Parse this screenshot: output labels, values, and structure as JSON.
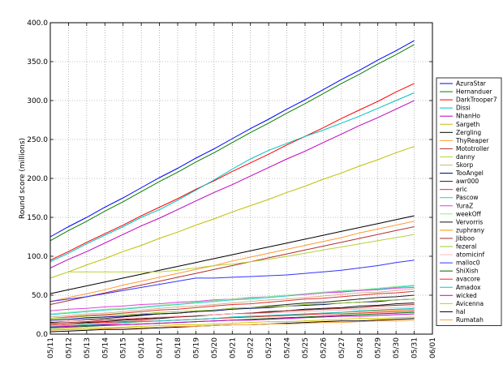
{
  "chart_data": {
    "type": "line",
    "ylabel": "Round score (millions)",
    "categories": [
      "05/11",
      "05/12",
      "05/13",
      "05/14",
      "05/15",
      "05/16",
      "05/17",
      "05/18",
      "05/19",
      "05/20",
      "05/21",
      "05/22",
      "05/23",
      "05/24",
      "05/25",
      "05/26",
      "05/27",
      "05/28",
      "05/29",
      "05/30",
      "05/31",
      "06/01"
    ],
    "ylim": [
      0,
      400
    ],
    "yticks": [
      {
        "value": 0,
        "label": "0.0"
      },
      {
        "value": 50,
        "label": "50.0"
      },
      {
        "value": 100,
        "label": "100.0"
      },
      {
        "value": 150,
        "label": "150.0"
      },
      {
        "value": 200,
        "label": "200.0"
      },
      {
        "value": 250,
        "label": "250.0"
      },
      {
        "value": 300,
        "label": "300.0"
      },
      {
        "value": 350,
        "label": "350.0"
      },
      {
        "value": 400,
        "label": "400.0"
      }
    ],
    "grid": true,
    "legend": "outside right",
    "series": [
      {
        "name": "AzuraStar",
        "color": "#0000ff",
        "values": [
          125,
          138,
          150,
          163,
          175,
          188,
          201,
          213,
          226,
          238,
          251,
          264,
          276,
          289,
          301,
          314,
          327,
          339,
          352,
          364,
          377,
          null
        ]
      },
      {
        "name": "Hernanduer",
        "color": "#008000",
        "values": [
          120,
          133,
          145,
          158,
          170,
          183,
          196,
          208,
          221,
          233,
          246,
          259,
          271,
          284,
          296,
          309,
          322,
          334,
          347,
          359,
          372,
          null
        ]
      },
      {
        "name": "DarkTrooper7",
        "color": "#ff0000",
        "values": [
          95,
          106,
          118,
          129,
          140,
          152,
          163,
          174,
          186,
          197,
          209,
          220,
          231,
          243,
          254,
          265,
          277,
          288,
          299,
          311,
          322,
          null
        ]
      },
      {
        "name": "Dissi",
        "color": "#00bfbf",
        "values": [
          93,
          104,
          116,
          127,
          138,
          150,
          160,
          172,
          185,
          198,
          212,
          225,
          236,
          245,
          254,
          262,
          271,
          280,
          290,
          300,
          310,
          null
        ]
      },
      {
        "name": "NhanHo",
        "color": "#bf00bf",
        "values": [
          85,
          96,
          106,
          117,
          128,
          139,
          149,
          160,
          171,
          182,
          192,
          203,
          214,
          225,
          235,
          246,
          257,
          268,
          278,
          289,
          300,
          null
        ]
      },
      {
        "name": "Sargeth",
        "color": "#bfbf00",
        "values": [
          72,
          80,
          89,
          97,
          106,
          114,
          123,
          131,
          140,
          148,
          157,
          165,
          173,
          182,
          190,
          199,
          207,
          216,
          224,
          233,
          241,
          null
        ]
      },
      {
        "name": "Zergling",
        "color": "#000000",
        "values": [
          52,
          57,
          62,
          67,
          72,
          77,
          82,
          87,
          92,
          97,
          102,
          107,
          112,
          117,
          122,
          127,
          132,
          137,
          142,
          147,
          152,
          null
        ]
      },
      {
        "name": "ThyReaper",
        "color": "#ff9933",
        "values": [
          42,
          47,
          52,
          57,
          63,
          68,
          73,
          78,
          83,
          88,
          94,
          99,
          104,
          109,
          114,
          119,
          124,
          130,
          135,
          140,
          145,
          null
        ]
      },
      {
        "name": "Mototroller",
        "color": "#b03030",
        "values": [
          38,
          43,
          48,
          53,
          58,
          63,
          68,
          73,
          78,
          83,
          88,
          93,
          98,
          103,
          108,
          113,
          118,
          123,
          128,
          133,
          138,
          null
        ]
      },
      {
        "name": "danny",
        "color": "#b5d335",
        "values": [
          72,
          80,
          80,
          80,
          80,
          80,
          80,
          82,
          85,
          88,
          90,
          93,
          96,
          100,
          104,
          108,
          112,
          116,
          120,
          124,
          128,
          null
        ]
      },
      {
        "name": "Skorp",
        "color": "#d2b48c",
        "values": [
          22,
          24,
          26,
          27,
          29,
          31,
          33,
          35,
          36,
          38,
          40,
          42,
          44,
          45,
          47,
          49,
          51,
          53,
          54,
          56,
          58,
          null
        ]
      },
      {
        "name": "TooAngel",
        "color": "#000080",
        "values": [
          18,
          19,
          21,
          22,
          23,
          25,
          26,
          27,
          29,
          30,
          32,
          33,
          34,
          36,
          37,
          38,
          40,
          41,
          42,
          44,
          45,
          null
        ]
      },
      {
        "name": "awr000",
        "color": "#202020",
        "values": [
          15,
          17,
          19,
          20,
          22,
          24,
          26,
          27,
          29,
          31,
          33,
          34,
          36,
          38,
          40,
          41,
          43,
          45,
          47,
          48,
          50,
          null
        ]
      },
      {
        "name": "eric",
        "color": "#e03030",
        "values": [
          20,
          22,
          24,
          25,
          27,
          29,
          31,
          32,
          34,
          36,
          38,
          39,
          41,
          43,
          45,
          46,
          48,
          50,
          52,
          53,
          55,
          null
        ]
      },
      {
        "name": "Pascow",
        "color": "#20d0d0",
        "values": [
          25,
          27,
          29,
          31,
          32,
          34,
          36,
          38,
          40,
          42,
          44,
          45,
          47,
          49,
          51,
          53,
          55,
          56,
          58,
          60,
          62,
          null
        ]
      },
      {
        "name": "YuraZ",
        "color": "#e040e0",
        "values": [
          30,
          32,
          33,
          35,
          36,
          38,
          39,
          41,
          42,
          44,
          45,
          47,
          48,
          50,
          51,
          53,
          54,
          56,
          57,
          59,
          60,
          null
        ]
      },
      {
        "name": "weekOff",
        "color": "#90ee90",
        "values": [
          26,
          28,
          30,
          32,
          33,
          35,
          37,
          39,
          41,
          43,
          45,
          46,
          48,
          50,
          52,
          54,
          56,
          57,
          59,
          61,
          63,
          null
        ]
      },
      {
        "name": "Vervorris",
        "color": "#101010",
        "values": [
          12,
          13,
          15,
          16,
          18,
          19,
          20,
          22,
          23,
          25,
          26,
          27,
          29,
          30,
          32,
          33,
          34,
          36,
          37,
          39,
          40,
          null
        ]
      },
      {
        "name": "zuphrany",
        "color": "#ff8c00",
        "values": [
          10,
          11,
          12,
          13,
          14,
          16,
          17,
          18,
          19,
          20,
          21,
          22,
          23,
          24,
          25,
          27,
          28,
          29,
          30,
          31,
          32,
          null
        ]
      },
      {
        "name": "Jibboo",
        "color": "#a52a2a",
        "values": [
          14,
          15,
          16,
          18,
          19,
          20,
          21,
          22,
          24,
          25,
          26,
          27,
          28,
          30,
          31,
          32,
          33,
          34,
          36,
          37,
          38,
          null
        ]
      },
      {
        "name": "fezeral",
        "color": "#9acd32",
        "values": [
          20,
          21,
          23,
          24,
          25,
          26,
          28,
          29,
          30,
          31,
          33,
          34,
          35,
          36,
          38,
          39,
          40,
          41,
          43,
          44,
          45,
          null
        ]
      },
      {
        "name": "atomicinf",
        "color": "#ffb6c1",
        "values": [
          16,
          17,
          18,
          19,
          20,
          21,
          22,
          23,
          24,
          25,
          26,
          26,
          27,
          28,
          29,
          30,
          31,
          32,
          33,
          34,
          35,
          null
        ]
      },
      {
        "name": "malloc0",
        "color": "#3333ff",
        "values": [
          42,
          45,
          48,
          52,
          56,
          60,
          64,
          68,
          72,
          72,
          73,
          74,
          75,
          76,
          78,
          80,
          82,
          85,
          88,
          92,
          95,
          null
        ]
      },
      {
        "name": "ShiXish",
        "color": "#006400",
        "values": [
          8,
          9,
          10,
          11,
          12,
          13,
          14,
          15,
          16,
          17,
          18,
          19,
          20,
          21,
          22,
          23,
          24,
          25,
          26,
          27,
          28,
          null
        ]
      },
      {
        "name": "avacore",
        "color": "#ff2020",
        "values": [
          12,
          13,
          14,
          15,
          16,
          17,
          17,
          18,
          19,
          20,
          21,
          22,
          23,
          24,
          25,
          26,
          26,
          27,
          28,
          29,
          30,
          null
        ]
      },
      {
        "name": "Amadox",
        "color": "#00cccc",
        "values": [
          10,
          11,
          12,
          13,
          15,
          16,
          17,
          18,
          19,
          20,
          22,
          23,
          24,
          25,
          26,
          27,
          28,
          30,
          31,
          32,
          33,
          null
        ]
      },
      {
        "name": "wicked",
        "color": "#cc00cc",
        "values": [
          9,
          10,
          11,
          12,
          12,
          13,
          14,
          15,
          16,
          17,
          18,
          18,
          19,
          20,
          21,
          22,
          23,
          23,
          24,
          25,
          26,
          null
        ]
      },
      {
        "name": "Avicenna",
        "color": "#cccc00",
        "values": [
          6,
          7,
          8,
          8,
          9,
          10,
          11,
          12,
          12,
          13,
          14,
          15,
          16,
          16,
          17,
          18,
          19,
          20,
          20,
          21,
          22,
          null
        ]
      },
      {
        "name": "hal",
        "color": "#000000",
        "values": [
          3,
          4,
          5,
          6,
          6,
          7,
          8,
          9,
          10,
          11,
          12,
          12,
          13,
          14,
          15,
          16,
          17,
          17,
          18,
          19,
          20,
          null
        ]
      },
      {
        "name": "Rumatah",
        "color": "#ffa040",
        "values": [
          5,
          6,
          6,
          7,
          8,
          8,
          9,
          10,
          10,
          11,
          12,
          12,
          13,
          13,
          14,
          15,
          15,
          16,
          17,
          17,
          18,
          null
        ]
      }
    ]
  }
}
